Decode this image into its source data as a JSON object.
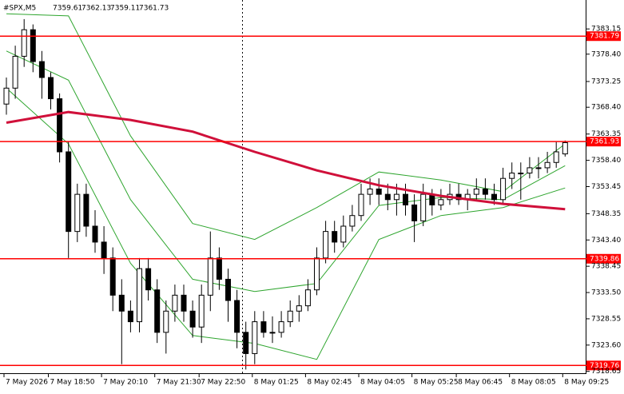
{
  "chart_data": {
    "type": "candlestick",
    "title": "#SPX,M5",
    "categories": [
      "7 May 2026",
      null,
      null,
      null,
      null,
      "7 May 18:50",
      null,
      null,
      null,
      null,
      null,
      "7 May 20:10",
      null,
      null,
      null,
      null,
      null,
      "7 May 21:30",
      null,
      null,
      null,
      null,
      "7 May 22:50",
      null,
      null,
      null,
      null,
      null,
      "8 May 01:25",
      null,
      null,
      null,
      null,
      null,
      "8 May 02:45",
      null,
      null,
      null,
      null,
      null,
      "8 May 04:05",
      null,
      null,
      null,
      null,
      null,
      "8 May 05:25",
      null,
      null,
      null,
      null,
      "8 May 06:45",
      null,
      null,
      null,
      null,
      null,
      "8 May 08:05",
      null,
      null,
      null,
      null,
      null,
      "8 May 09:25"
    ],
    "open": [
      7369,
      7372,
      7378,
      7383,
      7377,
      7374,
      7370,
      7360,
      7345,
      7352,
      7346,
      7343,
      7340,
      7333,
      7330,
      7328,
      7338,
      7334,
      7326,
      7330,
      7333,
      7330,
      7327,
      7333,
      7340,
      7336,
      7332,
      7326,
      7322,
      7328,
      7326,
      7326,
      7328,
      7330,
      7331,
      7334,
      7340,
      7345,
      7343,
      7346,
      7348,
      7352,
      7353,
      7352,
      7351,
      7352,
      7350,
      7347,
      7352,
      7350,
      7351,
      7352,
      7351,
      7352,
      7353,
      7352,
      7351,
      7355,
      7356,
      7356,
      7357,
      7357,
      7358,
      7359.61
    ],
    "high": [
      7374,
      7380,
      7385,
      7384,
      7379,
      7375,
      7371,
      7362,
      7354,
      7354,
      7349,
      7346,
      7342,
      7336,
      7332,
      7340,
      7340,
      7336,
      7332,
      7335,
      7335,
      7332,
      7335,
      7345,
      7342,
      7338,
      7334,
      7328,
      7330,
      7330,
      7329,
      7330,
      7332,
      7333,
      7336,
      7342,
      7347,
      7347,
      7348,
      7350,
      7354,
      7355,
      7355,
      7354,
      7354,
      7354,
      7352,
      7354,
      7353,
      7353,
      7354,
      7354,
      7353,
      7355,
      7355,
      7354,
      7357,
      7358,
      7358,
      7359,
      7359,
      7360,
      7362,
      7362.13
    ],
    "low": [
      7367,
      7370,
      7376,
      7375,
      7370,
      7368,
      7358,
      7340,
      7343,
      7344,
      7341,
      7337,
      7330,
      7320,
      7326,
      7326,
      7332,
      7324,
      7322,
      7328,
      7328,
      7325,
      7324,
      7330,
      7334,
      7328,
      7323,
      7319,
      7320,
      7325,
      7324,
      7325,
      7327,
      7328,
      7330,
      7333,
      7339,
      7341,
      7342,
      7345,
      7347,
      7350,
      7350,
      7349,
      7348,
      7348,
      7343,
      7346,
      7348,
      7349,
      7350,
      7350,
      7349,
      7351,
      7351,
      7350,
      7350,
      7353,
      7351,
      7355,
      7355,
      7356,
      7357,
      7359.11
    ],
    "close": [
      7372,
      7378,
      7383,
      7377,
      7374,
      7370,
      7360,
      7345,
      7352,
      7346,
      7343,
      7340,
      7333,
      7330,
      7328,
      7338,
      7334,
      7326,
      7330,
      7333,
      7330,
      7327,
      7333,
      7340,
      7336,
      7332,
      7326,
      7322,
      7328,
      7326,
      7326,
      7328,
      7330,
      7331,
      7334,
      7340,
      7345,
      7343,
      7346,
      7348,
      7352,
      7353,
      7352,
      7351,
      7352,
      7350,
      7347,
      7352,
      7350,
      7351,
      7352,
      7351,
      7352,
      7353,
      7352,
      7351,
      7355,
      7356,
      7356,
      7357,
      7357,
      7358,
      7360,
      7361.73
    ],
    "moving_average": {
      "color": "#d0103a",
      "x": [
        0,
        7,
        14,
        21,
        28,
        35,
        42,
        49,
        56,
        63
      ],
      "values": [
        7365.5,
        7367.5,
        7366,
        7363.8,
        7360,
        7356.5,
        7353.7,
        7351.7,
        7350.2,
        7349.2
      ]
    },
    "bollinger": {
      "color": "#2ea52e",
      "x": [
        0,
        7,
        14,
        21,
        28,
        35,
        42,
        49,
        56,
        63
      ],
      "upper": [
        7386,
        7385.6,
        7363,
        7346.5,
        7343.5,
        7349.5,
        7356.2,
        7354.7,
        7352.5,
        7361.5
      ],
      "middle": [
        7379,
        7373.5,
        7351,
        7336,
        7333.7,
        7335.2,
        7349.9,
        7351.4,
        7351,
        7357.4
      ],
      "lower": [
        7372,
        7361.5,
        7339,
        7325.4,
        7323.9,
        7320.9,
        7343.5,
        7348,
        7349.5,
        7353.2
      ]
    },
    "levels": [
      7381.79,
      7361.93,
      7339.86,
      7319.76
    ],
    "level_color": "#ff0000",
    "ylim": [
      7318.3,
      7388.6
    ],
    "yticks": [
      7383.15,
      {
        "value": 7378.4,
        "label": "7378.40"
      },
      7373.25,
      {
        "value": 7368.4,
        "label": "7368.40"
      },
      7363.35,
      {
        "value": 7358.4,
        "label": "7358.40"
      },
      7353.45,
      7348.35,
      {
        "value": 7343.4,
        "label": "7343.40"
      },
      7338.45,
      {
        "value": 7333.5,
        "label": "7333.50"
      },
      7328.55,
      {
        "value": 7323.6,
        "label": "7323.60"
      },
      7318.65
    ]
  }
}
